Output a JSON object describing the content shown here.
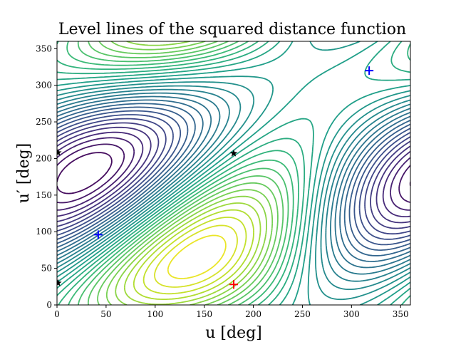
{
  "chart_data": {
    "type": "contour",
    "title": "Level lines of the squared distance function",
    "xlabel": "u [deg]",
    "ylabel": "u′ [deg]",
    "xlim": [
      0,
      360
    ],
    "ylim": [
      0,
      360
    ],
    "xticks": [
      "0",
      "50",
      "100",
      "150",
      "200",
      "250",
      "300",
      "350"
    ],
    "yticks": [
      "0",
      "50",
      "100",
      "150",
      "200",
      "250",
      "300",
      "350"
    ],
    "colormap": "viridis",
    "grid": false,
    "minima": [
      {
        "x": 180,
        "y": 28,
        "color": "#ff0000"
      }
    ],
    "maxima": [
      {
        "x": 42,
        "y": 96,
        "color": "#0000ff"
      },
      {
        "x": 318,
        "y": 320,
        "color": "#0000ff"
      }
    ],
    "saddles": [
      {
        "x": 180,
        "y": 207,
        "color": "#000000"
      },
      {
        "x": 1,
        "y": 208,
        "color": "#000000"
      },
      {
        "x": 1,
        "y": 30,
        "color": "#000000"
      }
    ]
  }
}
